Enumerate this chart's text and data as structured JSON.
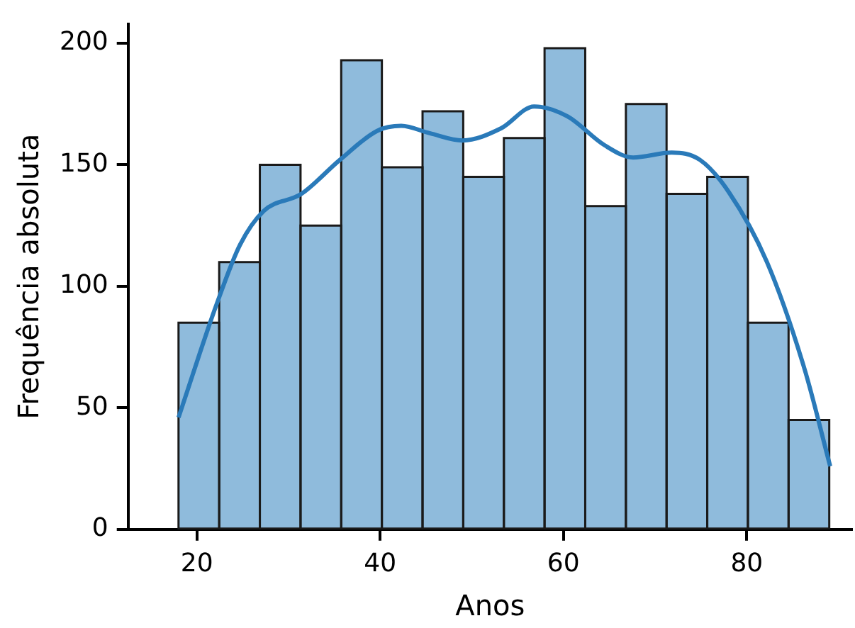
{
  "chart_data": {
    "type": "histogram",
    "xlabel": "Anos",
    "ylabel": "Frequência absoluta",
    "bins": [
      18,
      22.4375,
      26.875,
      31.3125,
      35.75,
      40.1875,
      44.625,
      49.0625,
      53.5,
      57.9375,
      62.375,
      66.8125,
      71.25,
      75.6875,
      80.125,
      84.5625,
      89
    ],
    "values": [
      85,
      110,
      150,
      125,
      193,
      149,
      172,
      145,
      161,
      198,
      133,
      175,
      138,
      145,
      85,
      45
    ],
    "color": "#8fbbdc",
    "series": [
      {
        "type": "line",
        "color": "#2a7ab9",
        "x": [
          18,
          22.1,
          24.7,
          27.3,
          31.4,
          35.6,
          39.7,
          42.3,
          45.4,
          49,
          53.2,
          56.8,
          60.4,
          64.5,
          67.6,
          71.8,
          74.9,
          78,
          82.2,
          86.3,
          89.1
        ],
        "values": [
          46,
          92,
          117,
          131,
          138,
          152,
          164,
          166,
          163,
          160,
          165,
          174,
          170,
          158,
          153,
          155,
          152,
          139,
          110,
          66,
          26
        ]
      }
    ],
    "xlim": [
      12.5,
      91.5
    ],
    "xticks": [
      20,
      40,
      60,
      80
    ],
    "ylim": [
      0,
      208
    ],
    "yticks": [
      0,
      50,
      100,
      150,
      200
    ],
    "grid": false,
    "legend": false
  }
}
